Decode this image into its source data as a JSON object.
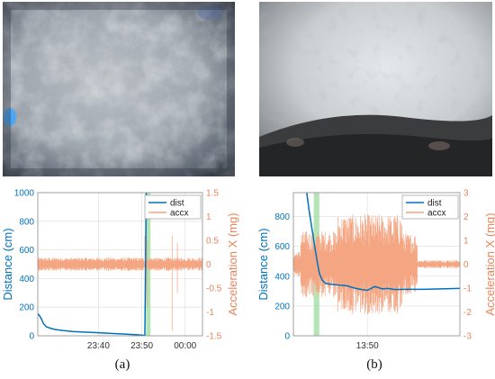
{
  "colors": {
    "dist": "#0072bd",
    "accx": "#f4a582",
    "highlight": "#9bdc9b",
    "grid": "#e3e3e3"
  },
  "panels": [
    {
      "caption": "(a)",
      "photo": "sensor camera view: grey mottled surface with blue glint at left edge (night)",
      "chart_data": {
        "type": "line",
        "title": "",
        "xlabel": "",
        "ylabel": "Distance (cm)",
        "ylabel_right": "Acceleration X (mg)",
        "ylim": [
          0,
          1000
        ],
        "ylim_right": [
          -1.5,
          1.5
        ],
        "yticks": [
          "0",
          "200",
          "400",
          "600",
          "800",
          "1000"
        ],
        "yticks_right": [
          "-1.5",
          "-1",
          "-0.5",
          "0",
          "0.5",
          "1",
          "1.5"
        ],
        "xticks": [
          {
            "label": "23:40",
            "at": 40
          },
          {
            "label": "23:50",
            "at": 50
          },
          {
            "label": "00:00",
            "at": 60
          }
        ],
        "xlim": [
          26,
          64
        ],
        "grid": true,
        "legend": {
          "position": "top-right",
          "entries": [
            "dist",
            "accx"
          ]
        },
        "highlight_x": [
          51.0,
          52.0
        ],
        "series": [
          {
            "name": "dist",
            "axis": "left",
            "x": [
              26,
              26.4,
              26.8,
              27.3,
              28,
              29,
              30,
              32,
              34,
              36,
              38,
              40,
              42,
              44,
              46,
              48,
              49,
              50,
              50.4,
              50.7,
              50.85,
              51,
              51.2
            ],
            "y": [
              155,
              140,
              120,
              85,
              62,
              52,
              44,
              36,
              30,
              27,
              24,
              21,
              18,
              15,
              12,
              9,
              7,
              5,
              3,
              2,
              400,
              1000,
              1000
            ]
          },
          {
            "name": "accx",
            "axis": "right",
            "baseline": 0,
            "amplitude": 0.14,
            "x_start": 26,
            "x_end": 64,
            "spikes": [
              {
                "x": 50.7,
                "low": -1.4,
                "high": 0.6
              },
              {
                "x": 51.3,
                "low": -0.9,
                "high": 0.5
              },
              {
                "x": 57,
                "low": -1.4,
                "high": 0.6
              },
              {
                "x": 58.2,
                "low": -0.6,
                "high": 0.45
              }
            ]
          }
        ]
      }
    },
    {
      "caption": "(b)",
      "photo": "sensor camera view: bright sky-white area with water droplets, dark ground at bottom",
      "chart_data": {
        "type": "line",
        "title": "",
        "xlabel": "",
        "ylabel": "Distance (cm)",
        "ylabel_right": "Acceleration X (mg)",
        "ylim": [
          0,
          960
        ],
        "ylim_right": [
          -3,
          3
        ],
        "yticks": [
          "0",
          "200",
          "400",
          "600",
          "800"
        ],
        "yticks_right": [
          "-3",
          "-2",
          "-1",
          "0",
          "1",
          "2",
          "3"
        ],
        "xticks": [
          {
            "label": "13:50",
            "at": 50
          }
        ],
        "xlim": [
          46,
          55
        ],
        "grid": true,
        "legend": {
          "position": "top-right",
          "entries": [
            "dist",
            "accx"
          ]
        },
        "highlight_x": [
          47.1,
          47.4
        ],
        "series": [
          {
            "name": "dist",
            "axis": "left",
            "x": [
              46.7,
              46.85,
              47.0,
              47.15,
              47.3,
              47.4,
              47.55,
              47.75,
              48.1,
              48.5,
              48.9,
              49.3,
              49.7,
              50.0,
              50.4,
              50.8,
              51.1,
              51.5,
              52,
              53,
              54,
              55
            ],
            "y": [
              980,
              840,
              720,
              600,
              490,
              420,
              375,
              350,
              345,
              340,
              335,
              320,
              310,
              305,
              330,
              315,
              318,
              310,
              312,
              312,
              315,
              318
            ]
          },
          {
            "name": "accx",
            "axis": "right",
            "noise_segments": [
              {
                "from": 46.0,
                "to": 46.4,
                "amp": 0.55
              },
              {
                "from": 46.4,
                "to": 48.4,
                "amp": 1.4
              },
              {
                "from": 48.4,
                "to": 51.9,
                "amp": 2.1
              },
              {
                "from": 51.9,
                "to": 52.7,
                "amp": 1.3
              },
              {
                "from": 52.7,
                "to": 55.0,
                "amp": 0.18
              }
            ]
          }
        ]
      }
    }
  ]
}
